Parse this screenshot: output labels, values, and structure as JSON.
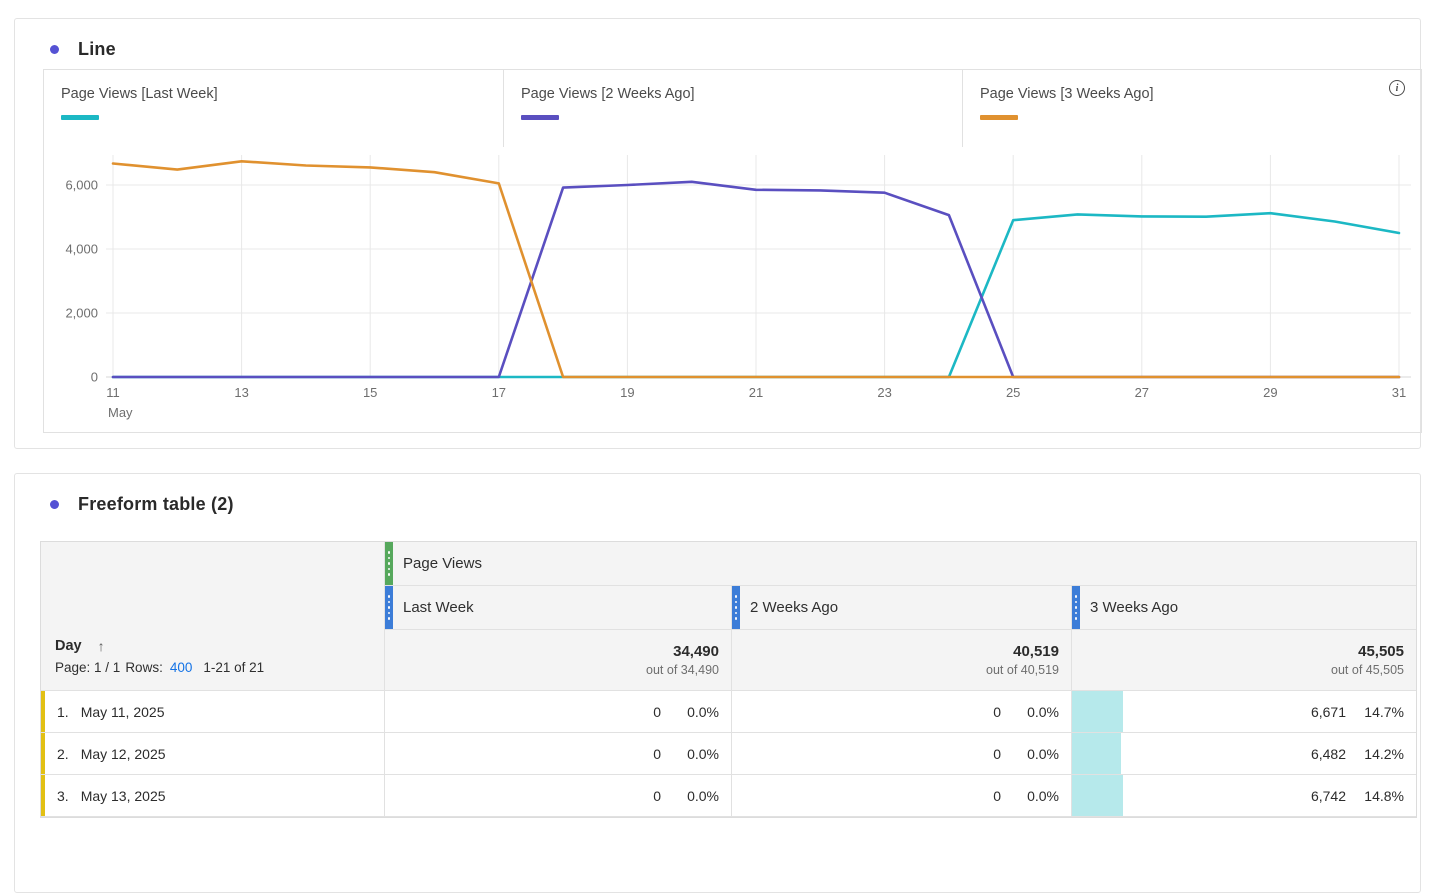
{
  "panels": {
    "line": {
      "title": "Line",
      "info_tooltip": "i",
      "legend": [
        {
          "label": "Page Views [Last Week]",
          "color": "#1cb8c4"
        },
        {
          "label": "Page Views [2 Weeks Ago]",
          "color": "#5a4fc0"
        },
        {
          "label": "Page Views [3 Weeks Ago]",
          "color": "#e0912f"
        }
      ]
    },
    "table": {
      "title": "Freeform table (2)",
      "metric_header": "Page Views",
      "columns": [
        {
          "label": "Last Week",
          "total": "34,490",
          "out_of": "out of 34,490"
        },
        {
          "label": "2 Weeks Ago",
          "total": "40,519",
          "out_of": "out of 40,519"
        },
        {
          "label": "3 Weeks Ago",
          "total": "45,505",
          "out_of": "out of 45,505"
        }
      ],
      "day_header": {
        "label": "Day",
        "sort_arrow": "↑"
      },
      "pagination": {
        "page_label": "Page: 1 / 1",
        "rows_label": "Rows:",
        "rows_value": "400",
        "range": "1-21 of 21"
      },
      "rows": [
        {
          "n": "1.",
          "day": "May 11, 2025",
          "cells": [
            {
              "value": "0",
              "pct": "0.0%",
              "bar": 0
            },
            {
              "value": "0",
              "pct": "0.0%",
              "bar": 0
            },
            {
              "value": "6,671",
              "pct": "14.7%",
              "bar": 14.7
            }
          ]
        },
        {
          "n": "2.",
          "day": "May 12, 2025",
          "cells": [
            {
              "value": "0",
              "pct": "0.0%",
              "bar": 0
            },
            {
              "value": "0",
              "pct": "0.0%",
              "bar": 0
            },
            {
              "value": "6,482",
              "pct": "14.2%",
              "bar": 14.2
            }
          ]
        },
        {
          "n": "3.",
          "day": "May 13, 2025",
          "cells": [
            {
              "value": "0",
              "pct": "0.0%",
              "bar": 0
            },
            {
              "value": "0",
              "pct": "0.0%",
              "bar": 0
            },
            {
              "value": "6,742",
              "pct": "14.8%",
              "bar": 14.8
            }
          ]
        }
      ]
    }
  },
  "chart_data": {
    "type": "line",
    "title": "Line",
    "x": [
      11,
      12,
      13,
      14,
      15,
      16,
      17,
      18,
      19,
      20,
      21,
      22,
      23,
      24,
      25,
      26,
      27,
      28,
      29,
      30,
      31
    ],
    "x_month_label": "May",
    "xticks": [
      11,
      13,
      15,
      17,
      19,
      21,
      23,
      25,
      27,
      29,
      31
    ],
    "yticks": [
      0,
      2000,
      4000,
      6000
    ],
    "ylim": [
      0,
      7000
    ],
    "grid": true,
    "legend_position": "top",
    "series": [
      {
        "name": "Page Views [Last Week]",
        "color": "#1cb8c4",
        "values": [
          0,
          0,
          0,
          0,
          0,
          0,
          0,
          0,
          0,
          0,
          0,
          0,
          0,
          0,
          4900,
          5080,
          5020,
          5010,
          5120,
          4860,
          4500
        ]
      },
      {
        "name": "Page Views [2 Weeks Ago]",
        "color": "#5a4fc0",
        "values": [
          0,
          0,
          0,
          0,
          0,
          0,
          0,
          5919,
          6000,
          6100,
          5850,
          5830,
          5760,
          5060,
          0,
          0,
          0,
          0,
          0,
          0,
          0
        ]
      },
      {
        "name": "Page Views [3 Weeks Ago]",
        "color": "#e0912f",
        "values": [
          6671,
          6482,
          6742,
          6610,
          6550,
          6400,
          6050,
          0,
          0,
          0,
          0,
          0,
          0,
          0,
          0,
          0,
          0,
          0,
          0,
          0,
          0
        ]
      }
    ]
  },
  "colors": {
    "accent": "#5552d4",
    "metric_handle": "#56a85c",
    "column_handle": "#3c7dd8",
    "row_border": "#e2c014",
    "data_bar": "#b6e9eb",
    "link": "#1473e6",
    "gridline": "#e8e8e8"
  }
}
